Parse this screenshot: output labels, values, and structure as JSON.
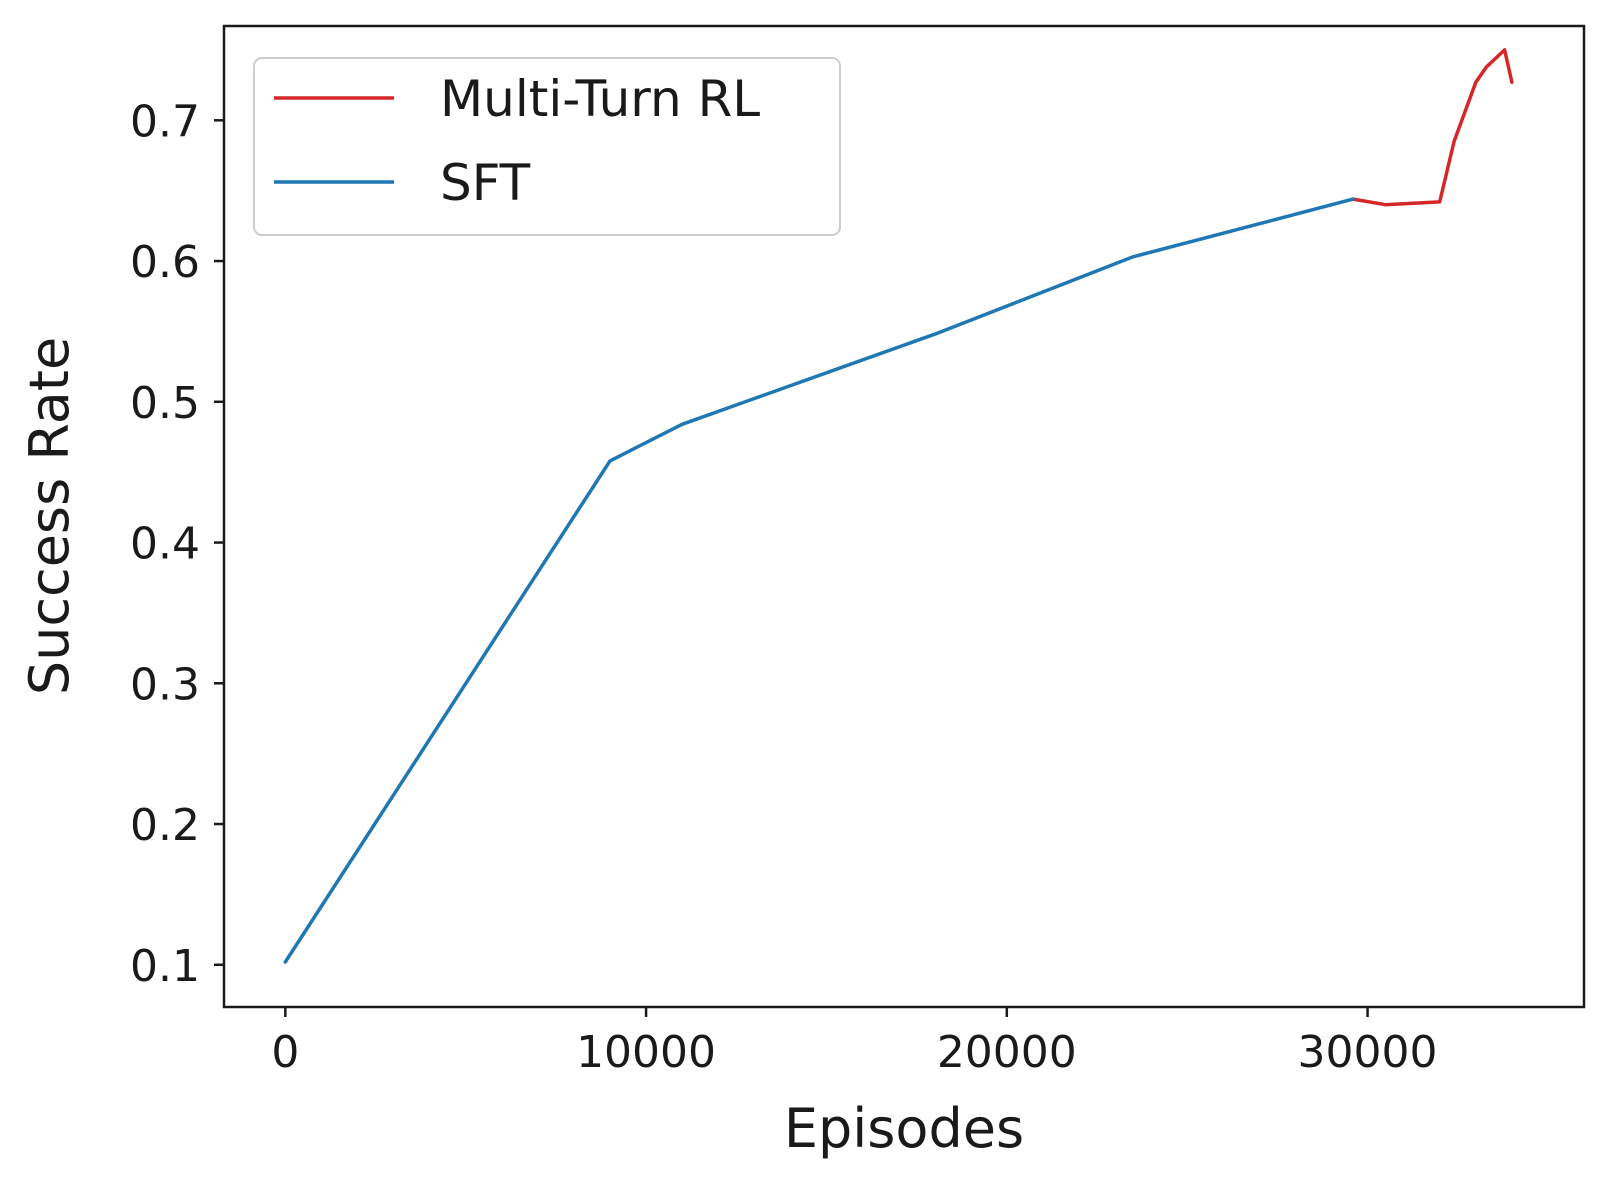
{
  "chart_data": {
    "type": "line",
    "title": "",
    "xlabel": "Episodes",
    "ylabel": "Success Rate",
    "xlim": [
      -1700,
      36000
    ],
    "ylim": [
      0.07,
      0.767
    ],
    "xticks": [
      0,
      10000,
      20000,
      30000
    ],
    "xtick_labels": [
      "0",
      "10000",
      "20000",
      "30000"
    ],
    "yticks": [
      0.1,
      0.2,
      0.3,
      0.4,
      0.5,
      0.6,
      0.7
    ],
    "ytick_labels": [
      "0.1",
      "0.2",
      "0.3",
      "0.4",
      "0.5",
      "0.6",
      "0.7"
    ],
    "grid": false,
    "legend_position": "top-left",
    "series": [
      {
        "name": "Multi-Turn RL",
        "color": "#d62728",
        "x": [
          29600,
          30500,
          32000,
          32400,
          33000,
          33300,
          33800,
          34000
        ],
        "y": [
          0.644,
          0.64,
          0.642,
          0.685,
          0.727,
          0.738,
          0.75,
          0.727
        ]
      },
      {
        "name": "SFT",
        "color": "#1f77b4",
        "x": [
          0,
          9000,
          11000,
          18000,
          23500,
          29600
        ],
        "y": [
          0.102,
          0.458,
          0.484,
          0.548,
          0.603,
          0.644
        ]
      }
    ]
  }
}
